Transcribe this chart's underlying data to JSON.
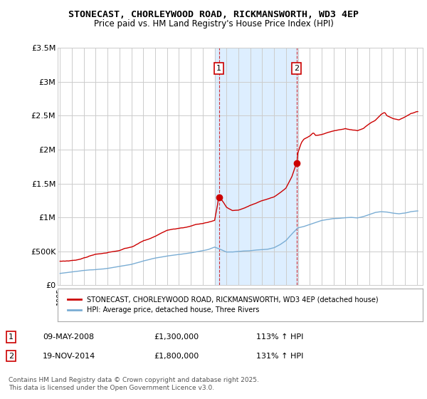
{
  "title": "STONECAST, CHORLEYWOOD ROAD, RICKMANSWORTH, WD3 4EP",
  "subtitle": "Price paid vs. HM Land Registry's House Price Index (HPI)",
  "background_color": "#ffffff",
  "grid_color": "#cccccc",
  "hpi_line_color": "#7aadd4",
  "price_line_color": "#cc0000",
  "shaded_region_color": "#ddeeff",
  "ylim": [
    0,
    3500000
  ],
  "yticks": [
    0,
    500000,
    1000000,
    1500000,
    2000000,
    2500000,
    3000000,
    3500000
  ],
  "ytick_labels": [
    "£0",
    "£500K",
    "£1M",
    "£1.5M",
    "£2M",
    "£2.5M",
    "£3M",
    "£3.5M"
  ],
  "sale1_date": 2008.36,
  "sale1_price": 1300000,
  "sale2_date": 2014.89,
  "sale2_price": 1800000,
  "shaded_x1": 2008.0,
  "shaded_x2": 2015.0,
  "xmin": 1994.8,
  "xmax": 2025.5,
  "xticks": [
    1995,
    1996,
    1997,
    1998,
    1999,
    2000,
    2001,
    2002,
    2003,
    2004,
    2005,
    2006,
    2007,
    2008,
    2009,
    2010,
    2011,
    2012,
    2013,
    2014,
    2015,
    2016,
    2017,
    2018,
    2019,
    2020,
    2021,
    2022,
    2023,
    2024,
    2025
  ],
  "legend_label_price": "STONECAST, CHORLEYWOOD ROAD, RICKMANSWORTH, WD3 4EP (detached house)",
  "legend_label_hpi": "HPI: Average price, detached house, Three Rivers",
  "annotation1_date": "09-MAY-2008",
  "annotation1_price": "£1,300,000",
  "annotation1_hpi": "113% ↑ HPI",
  "annotation2_date": "19-NOV-2014",
  "annotation2_price": "£1,800,000",
  "annotation2_hpi": "131% ↑ HPI",
  "footer": "Contains HM Land Registry data © Crown copyright and database right 2025.\nThis data is licensed under the Open Government Licence v3.0."
}
